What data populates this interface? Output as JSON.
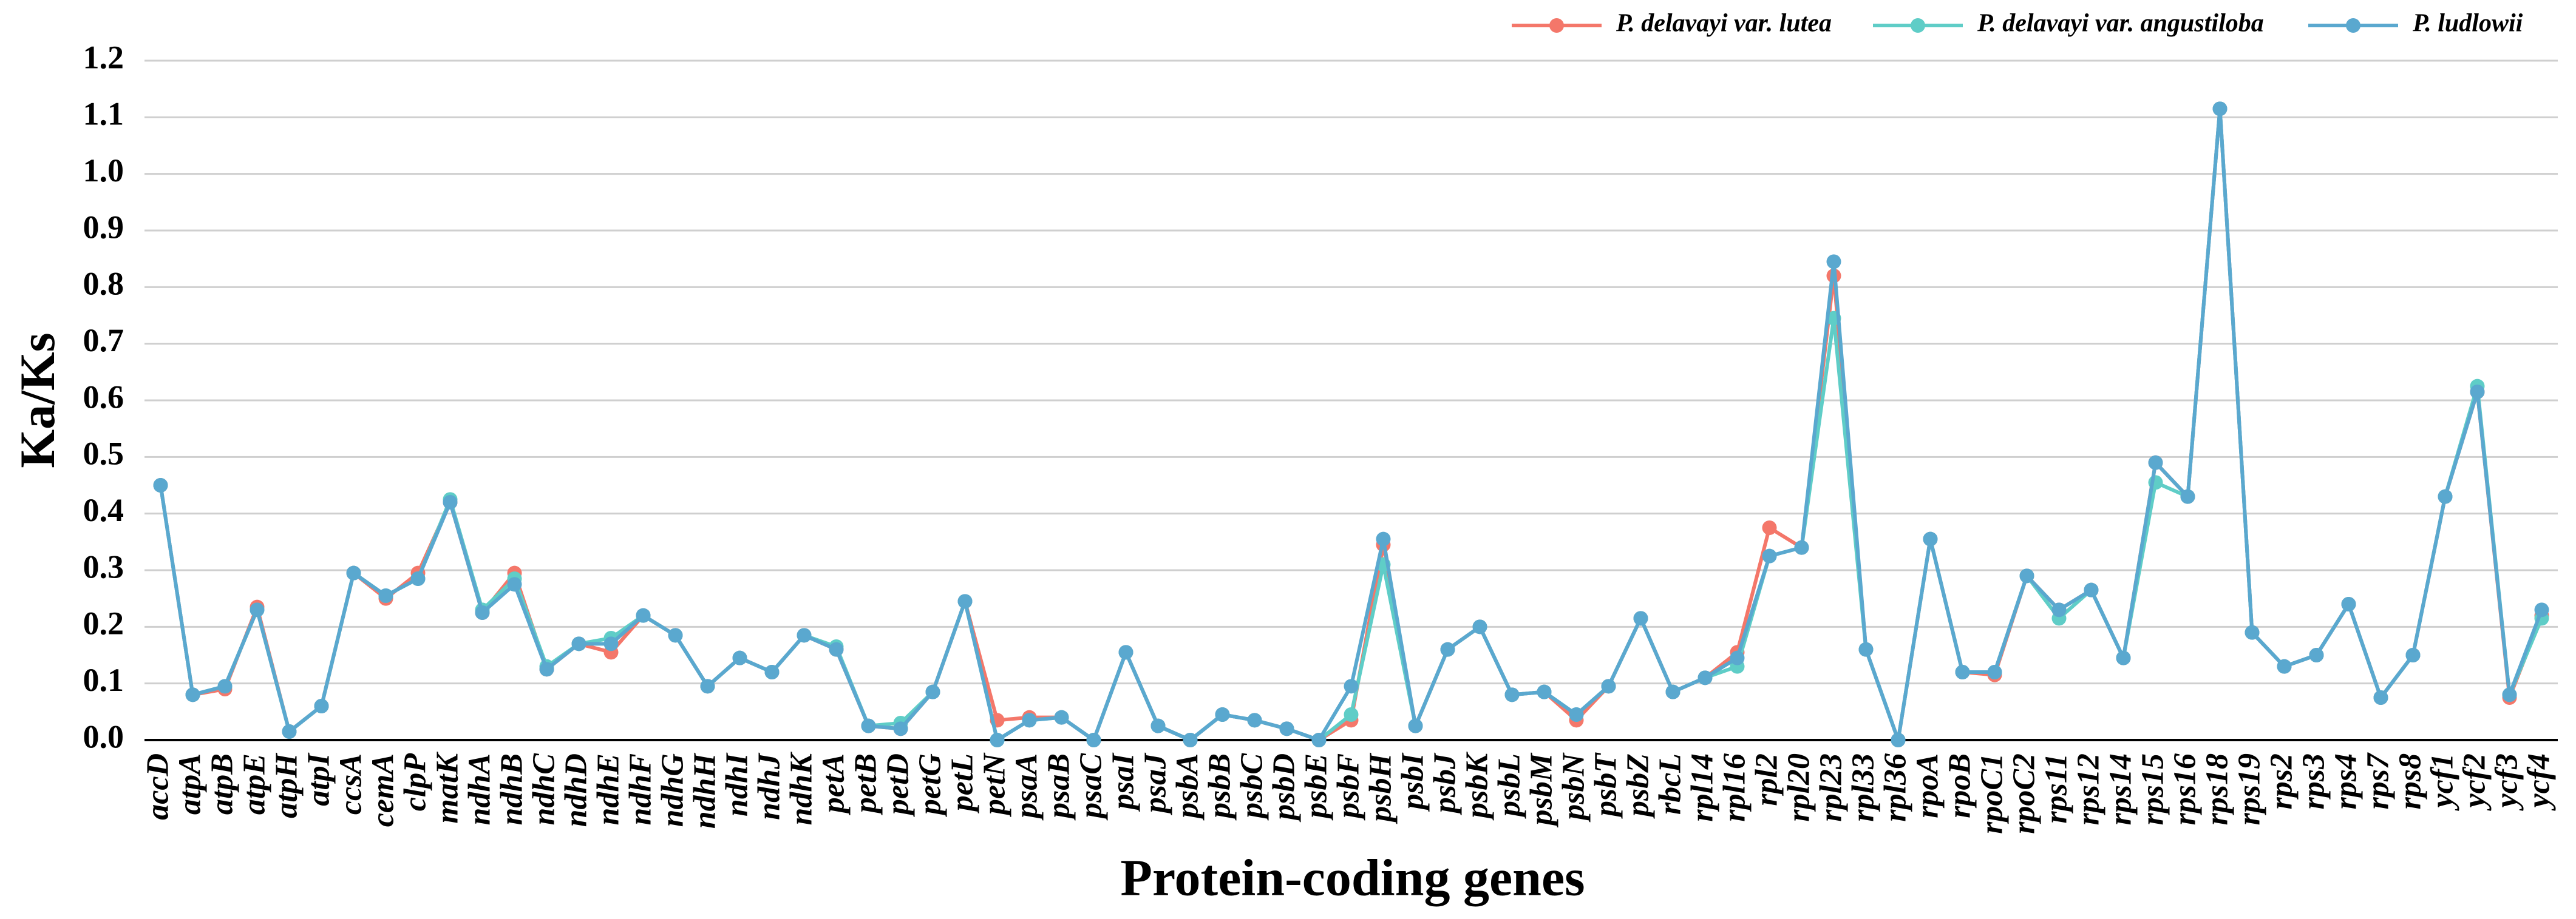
{
  "chart_data": {
    "type": "line",
    "xlabel": "Protein-coding genes",
    "ylabel": "Ka/Ks",
    "categories": [
      "accD",
      "atpA",
      "atpB",
      "atpE",
      "atpH",
      "atpI",
      "ccsA",
      "cemA",
      "clpP",
      "matK",
      "ndhA",
      "ndhB",
      "ndhC",
      "ndhD",
      "ndhE",
      "ndhF",
      "ndhG",
      "ndhH",
      "ndhI",
      "ndhJ",
      "ndhK",
      "petA",
      "petB",
      "petD",
      "petG",
      "petL",
      "petN",
      "psaA",
      "psaB",
      "psaC",
      "psaI",
      "psaJ",
      "psbA",
      "psbB",
      "psbC",
      "psbD",
      "psbE",
      "psbF",
      "psbH",
      "psbI",
      "psbJ",
      "psbK",
      "psbL",
      "psbM",
      "psbN",
      "psbT",
      "psbZ",
      "rbcL",
      "rpl14",
      "rpl16",
      "rpl2",
      "rpl20",
      "rpl23",
      "rpl33",
      "rpl36",
      "rpoA",
      "rpoB",
      "rpoC1",
      "rpoC2",
      "rps11",
      "rps12",
      "rps14",
      "rps15",
      "rps16",
      "rps18",
      "rps19",
      "rps2",
      "rps3",
      "rps4",
      "rps7",
      "rps8",
      "ycf1",
      "ycf2",
      "ycf3",
      "ycf4"
    ],
    "series": [
      {
        "name": "P. delavayi var. lutea",
        "color": "#f4776a",
        "values": [
          0.45,
          0.08,
          0.09,
          0.235,
          0.015,
          0.06,
          0.295,
          0.25,
          0.295,
          0.42,
          0.225,
          0.295,
          0.125,
          0.17,
          0.155,
          0.22,
          0.185,
          0.095,
          0.145,
          0.12,
          0.185,
          0.16,
          0.025,
          0.02,
          0.085,
          0.245,
          0.035,
          0.04,
          0.04,
          0.0,
          0.155,
          0.025,
          0.0,
          0.045,
          0.035,
          0.02,
          0.0,
          0.035,
          0.345,
          0.025,
          0.16,
          0.2,
          0.08,
          0.085,
          0.035,
          0.095,
          0.215,
          0.085,
          0.11,
          0.155,
          0.375,
          0.34,
          0.82,
          0.16,
          0.0,
          0.355,
          0.12,
          0.115,
          0.29,
          0.23,
          0.265,
          0.145,
          0.49,
          0.43,
          1.115,
          0.19,
          0.13,
          0.15,
          0.24,
          0.075,
          0.15,
          0.43,
          0.615,
          0.075,
          0.22
        ]
      },
      {
        "name": "P. delavayi var. angustiloba",
        "color": "#5fcdc7",
        "values": [
          0.45,
          0.08,
          0.095,
          0.23,
          0.015,
          0.06,
          0.295,
          0.255,
          0.285,
          0.425,
          0.23,
          0.285,
          0.13,
          0.17,
          0.18,
          0.22,
          0.185,
          0.095,
          0.145,
          0.12,
          0.185,
          0.165,
          0.025,
          0.03,
          0.085,
          0.245,
          0.0,
          0.035,
          0.04,
          0.0,
          0.155,
          0.025,
          0.0,
          0.045,
          0.035,
          0.02,
          0.0,
          0.045,
          0.31,
          0.025,
          0.16,
          0.2,
          0.08,
          0.085,
          0.045,
          0.095,
          0.215,
          0.085,
          0.11,
          0.13,
          0.325,
          0.34,
          0.745,
          0.16,
          0.0,
          0.355,
          0.12,
          0.12,
          0.29,
          0.215,
          0.265,
          0.145,
          0.455,
          0.43,
          1.115,
          0.19,
          0.13,
          0.15,
          0.24,
          0.075,
          0.15,
          0.43,
          0.625,
          0.08,
          0.215
        ]
      },
      {
        "name": "P. ludlowii",
        "color": "#5aa8cf",
        "values": [
          0.45,
          0.08,
          0.095,
          0.23,
          0.015,
          0.06,
          0.295,
          0.255,
          0.285,
          0.42,
          0.225,
          0.275,
          0.125,
          0.17,
          0.17,
          0.22,
          0.185,
          0.095,
          0.145,
          0.12,
          0.185,
          0.16,
          0.025,
          0.02,
          0.085,
          0.245,
          0.0,
          0.035,
          0.04,
          0.0,
          0.155,
          0.025,
          0.0,
          0.045,
          0.035,
          0.02,
          0.0,
          0.095,
          0.355,
          0.025,
          0.16,
          0.2,
          0.08,
          0.085,
          0.045,
          0.095,
          0.215,
          0.085,
          0.11,
          0.145,
          0.325,
          0.34,
          0.845,
          0.16,
          0.0,
          0.355,
          0.12,
          0.12,
          0.29,
          0.23,
          0.265,
          0.145,
          0.49,
          0.43,
          1.115,
          0.19,
          0.13,
          0.15,
          0.24,
          0.075,
          0.15,
          0.43,
          0.615,
          0.08,
          0.23
        ]
      }
    ],
    "ylim": [
      0,
      1.2
    ],
    "yticks": [
      {
        "value": 0,
        "label": "0.0"
      },
      0.1,
      0.2,
      0.3,
      0.4,
      0.5,
      0.6,
      0.7,
      0.8,
      0.9,
      {
        "value": 1,
        "label": "1.0"
      },
      1.1,
      1.2
    ],
    "grid": true,
    "legend": "top-right"
  }
}
